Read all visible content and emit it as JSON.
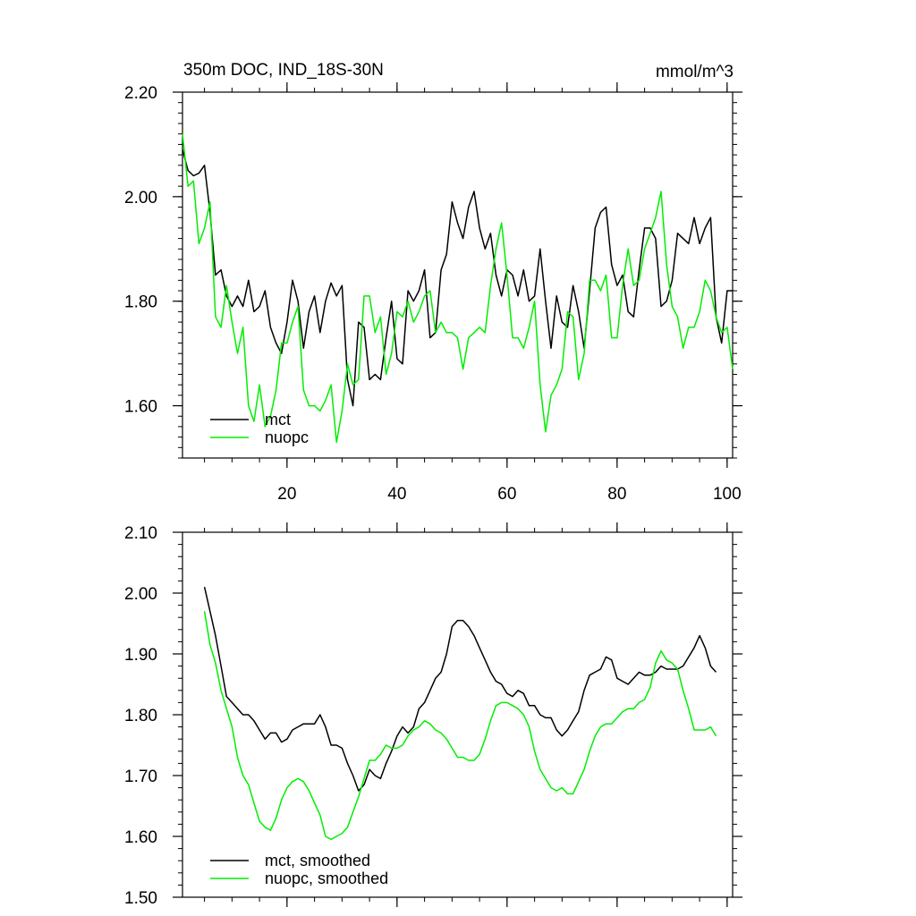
{
  "chart_data": [
    {
      "type": "line",
      "title": "350m DOC, IND_18S-30N",
      "units": "mmol/m^3",
      "xlim": [
        1,
        101
      ],
      "ylim": [
        1.5,
        2.2
      ],
      "xticks": [
        20,
        40,
        60,
        80,
        100
      ],
      "xtick_labels": [
        "20",
        "40",
        "60",
        "80",
        "100"
      ],
      "yticks": [
        1.6,
        1.8,
        2.0,
        2.2
      ],
      "ytick_labels": [
        "1.60",
        "1.80",
        "2.00",
        "2.20"
      ],
      "legend_position": "bottom-left",
      "x": [
        1,
        2,
        3,
        4,
        5,
        6,
        7,
        8,
        9,
        10,
        11,
        12,
        13,
        14,
        15,
        16,
        17,
        18,
        19,
        20,
        21,
        22,
        23,
        24,
        25,
        26,
        27,
        28,
        29,
        30,
        31,
        32,
        33,
        34,
        35,
        36,
        37,
        38,
        39,
        40,
        41,
        42,
        43,
        44,
        45,
        46,
        47,
        48,
        49,
        50,
        51,
        52,
        53,
        54,
        55,
        56,
        57,
        58,
        59,
        60,
        61,
        62,
        63,
        64,
        65,
        66,
        67,
        68,
        69,
        70,
        71,
        72,
        73,
        74,
        75,
        76,
        77,
        78,
        79,
        80,
        81,
        82,
        83,
        84,
        85,
        86,
        87,
        88,
        89,
        90,
        91,
        92,
        93,
        94,
        95,
        96,
        97,
        98,
        99,
        100,
        101
      ],
      "series": [
        {
          "name": "mct",
          "color": "#000000",
          "values": [
            2.09,
            2.05,
            2.04,
            2.045,
            2.06,
            1.97,
            1.85,
            1.86,
            1.81,
            1.79,
            1.81,
            1.79,
            1.84,
            1.78,
            1.79,
            1.82,
            1.75,
            1.72,
            1.7,
            1.76,
            1.84,
            1.8,
            1.71,
            1.78,
            1.81,
            1.74,
            1.8,
            1.835,
            1.81,
            1.83,
            1.65,
            1.6,
            1.76,
            1.75,
            1.65,
            1.66,
            1.65,
            1.73,
            1.8,
            1.69,
            1.68,
            1.82,
            1.8,
            1.82,
            1.86,
            1.73,
            1.74,
            1.86,
            1.89,
            1.99,
            1.95,
            1.92,
            1.98,
            2.01,
            1.94,
            1.9,
            1.93,
            1.85,
            1.81,
            1.86,
            1.85,
            1.81,
            1.86,
            1.8,
            1.81,
            1.9,
            1.8,
            1.71,
            1.81,
            1.76,
            1.75,
            1.83,
            1.78,
            1.71,
            1.82,
            1.94,
            1.97,
            1.98,
            1.87,
            1.83,
            1.85,
            1.78,
            1.77,
            1.86,
            1.94,
            1.94,
            1.92,
            1.79,
            1.8,
            1.84,
            1.93,
            1.92,
            1.91,
            1.96,
            1.91,
            1.94,
            1.96,
            1.77,
            1.72,
            1.82,
            1.82
          ]
        },
        {
          "name": "nuopc",
          "color": "#00ee00",
          "values": [
            2.12,
            2.02,
            2.03,
            1.91,
            1.94,
            1.99,
            1.77,
            1.75,
            1.83,
            1.76,
            1.7,
            1.75,
            1.6,
            1.57,
            1.64,
            1.56,
            1.58,
            1.63,
            1.72,
            1.72,
            1.76,
            1.79,
            1.63,
            1.6,
            1.6,
            1.59,
            1.61,
            1.64,
            1.53,
            1.59,
            1.68,
            1.64,
            1.65,
            1.81,
            1.81,
            1.74,
            1.77,
            1.66,
            1.7,
            1.78,
            1.77,
            1.8,
            1.76,
            1.78,
            1.81,
            1.82,
            1.74,
            1.76,
            1.74,
            1.74,
            1.73,
            1.67,
            1.73,
            1.74,
            1.75,
            1.74,
            1.83,
            1.9,
            1.95,
            1.85,
            1.73,
            1.73,
            1.71,
            1.75,
            1.8,
            1.64,
            1.55,
            1.62,
            1.64,
            1.67,
            1.78,
            1.77,
            1.65,
            1.7,
            1.84,
            1.84,
            1.82,
            1.85,
            1.73,
            1.73,
            1.83,
            1.9,
            1.83,
            1.84,
            1.9,
            1.93,
            1.96,
            2.01,
            1.87,
            1.79,
            1.77,
            1.71,
            1.75,
            1.75,
            1.78,
            1.84,
            1.82,
            1.77,
            1.74,
            1.75,
            1.67
          ]
        }
      ]
    },
    {
      "type": "line",
      "xlim": [
        1,
        101
      ],
      "ylim": [
        1.5,
        2.1
      ],
      "xticks": [
        20,
        40,
        60,
        80,
        100
      ],
      "yticks": [
        1.5,
        1.6,
        1.7,
        1.8,
        1.9,
        2.0,
        2.1
      ],
      "ytick_labels": [
        "1.50",
        "1.60",
        "1.70",
        "1.80",
        "1.90",
        "2.00",
        "2.10"
      ],
      "legend_position": "bottom-left",
      "x": [
        5,
        6,
        7,
        8,
        9,
        10,
        11,
        12,
        13,
        14,
        15,
        16,
        17,
        18,
        19,
        20,
        21,
        22,
        23,
        24,
        25,
        26,
        27,
        28,
        29,
        30,
        31,
        32,
        33,
        34,
        35,
        36,
        37,
        38,
        39,
        40,
        41,
        42,
        43,
        44,
        45,
        46,
        47,
        48,
        49,
        50,
        51,
        52,
        53,
        54,
        55,
        56,
        57,
        58,
        59,
        60,
        61,
        62,
        63,
        64,
        65,
        66,
        67,
        68,
        69,
        70,
        71,
        72,
        73,
        74,
        75,
        76,
        77,
        78,
        79,
        80,
        81,
        82,
        83,
        84,
        85,
        86,
        87,
        88,
        89,
        90,
        91,
        92,
        93,
        94,
        95,
        96,
        97,
        98
      ],
      "series": [
        {
          "name": "mct, smoothed",
          "color": "#000000",
          "values": [
            2.01,
            1.97,
            1.93,
            1.88,
            1.83,
            1.82,
            1.81,
            1.8,
            1.8,
            1.79,
            1.775,
            1.76,
            1.77,
            1.77,
            1.755,
            1.76,
            1.775,
            1.78,
            1.785,
            1.785,
            1.785,
            1.8,
            1.78,
            1.75,
            1.75,
            1.745,
            1.72,
            1.7,
            1.675,
            1.685,
            1.71,
            1.7,
            1.695,
            1.72,
            1.74,
            1.765,
            1.78,
            1.77,
            1.78,
            1.81,
            1.82,
            1.84,
            1.86,
            1.87,
            1.9,
            1.945,
            1.955,
            1.955,
            1.945,
            1.93,
            1.91,
            1.89,
            1.87,
            1.855,
            1.85,
            1.835,
            1.83,
            1.84,
            1.835,
            1.815,
            1.815,
            1.8,
            1.795,
            1.795,
            1.775,
            1.765,
            1.775,
            1.79,
            1.805,
            1.84,
            1.865,
            1.87,
            1.875,
            1.895,
            1.89,
            1.86,
            1.855,
            1.85,
            1.86,
            1.87,
            1.865,
            1.865,
            1.87,
            1.88,
            1.875,
            1.875,
            1.875,
            1.88,
            1.895,
            1.91,
            1.93,
            1.91,
            1.88,
            1.87
          ]
        },
        {
          "name": "nuopc, smoothed",
          "color": "#00ee00",
          "values": [
            1.97,
            1.915,
            1.885,
            1.84,
            1.81,
            1.78,
            1.73,
            1.7,
            1.685,
            1.655,
            1.625,
            1.615,
            1.61,
            1.63,
            1.66,
            1.68,
            1.69,
            1.695,
            1.69,
            1.675,
            1.655,
            1.635,
            1.6,
            1.595,
            1.6,
            1.605,
            1.615,
            1.64,
            1.665,
            1.695,
            1.725,
            1.725,
            1.735,
            1.75,
            1.745,
            1.745,
            1.75,
            1.765,
            1.775,
            1.78,
            1.79,
            1.785,
            1.775,
            1.77,
            1.76,
            1.745,
            1.73,
            1.73,
            1.725,
            1.725,
            1.735,
            1.76,
            1.79,
            1.815,
            1.82,
            1.82,
            1.815,
            1.81,
            1.8,
            1.78,
            1.74,
            1.71,
            1.695,
            1.68,
            1.675,
            1.68,
            1.67,
            1.67,
            1.69,
            1.71,
            1.74,
            1.765,
            1.78,
            1.785,
            1.785,
            1.795,
            1.805,
            1.81,
            1.81,
            1.82,
            1.825,
            1.845,
            1.885,
            1.905,
            1.89,
            1.885,
            1.875,
            1.84,
            1.81,
            1.775,
            1.775,
            1.775,
            1.78,
            1.765
          ]
        }
      ]
    }
  ]
}
